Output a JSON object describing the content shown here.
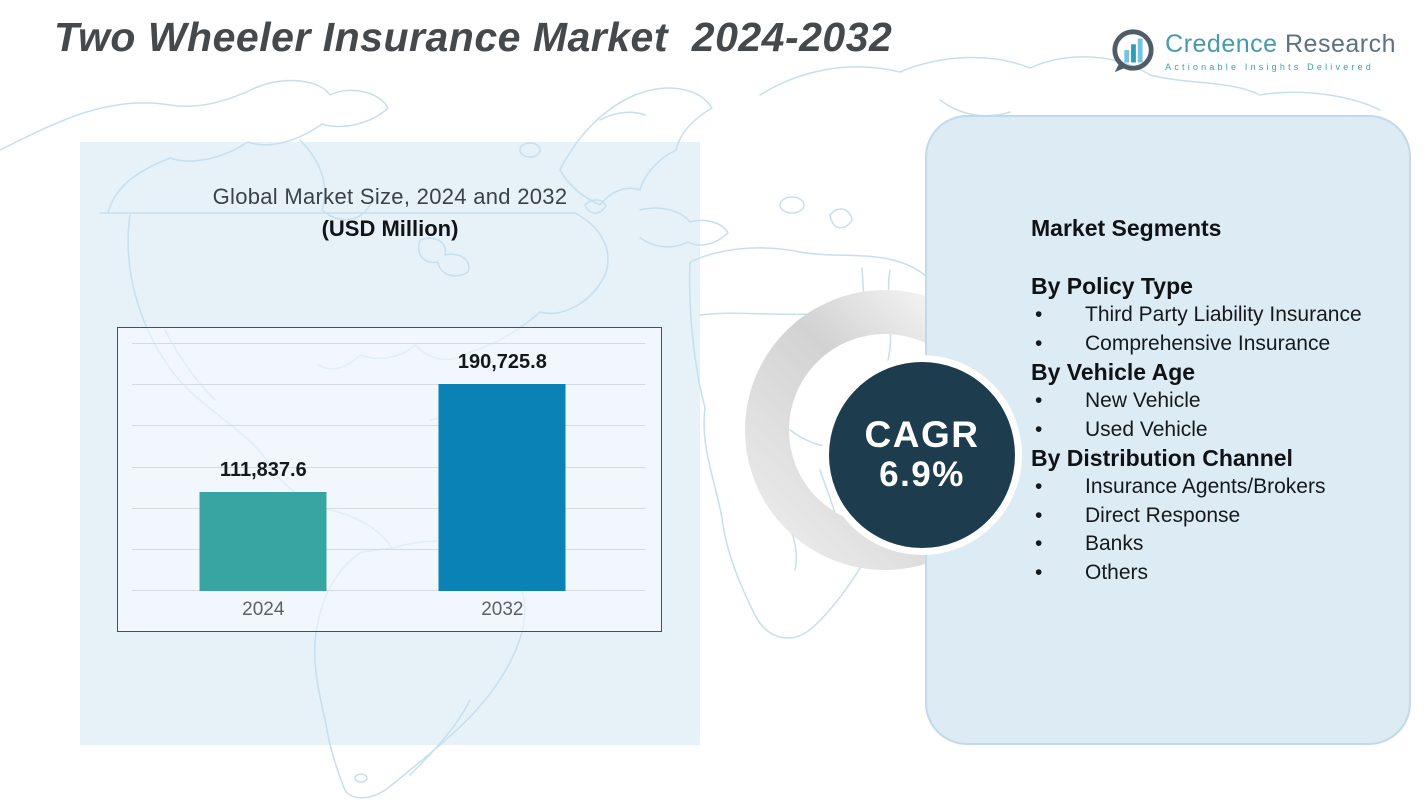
{
  "page": {
    "title": "Two Wheeler Insurance Market  2024-2032"
  },
  "logo": {
    "name_part1": "Credence",
    "name_part2": " Research",
    "tagline": "Actionable Insights Delivered",
    "icon": "bar-chart-speech-bubble-icon"
  },
  "chart_data": {
    "type": "bar",
    "title": "Global Market Size, 2024 and 2032",
    "subtitle": "(USD Million)",
    "categories": [
      "2024",
      "2032"
    ],
    "values": [
      111837.6,
      190725.8
    ],
    "value_labels": [
      "111,837.6",
      "190,725.8"
    ],
    "bar_colors": [
      "#38A5A2",
      "#0B82B5"
    ],
    "ylim": [
      40000,
      220000
    ],
    "gridline_count": 7,
    "grid": "horizontal",
    "legend": "none",
    "xlabel": "",
    "ylabel": ""
  },
  "cagr": {
    "label": "CAGR",
    "value": "6.9%"
  },
  "segments": {
    "title": "Market Segments",
    "groups": [
      {
        "heading": "By Policy Type",
        "items": [
          "Third Party Liability Insurance",
          "Comprehensive Insurance"
        ]
      },
      {
        "heading": "By Vehicle Age",
        "items": [
          "New Vehicle",
          "Used Vehicle"
        ]
      },
      {
        "heading": "By Distribution Channel",
        "items": [
          "Insurance Agents/Brokers",
          "Direct Response",
          "Banks",
          "Others"
        ]
      }
    ]
  },
  "colors": {
    "bar_2024": "#38A5A2",
    "bar_2032": "#0B82B5",
    "cagr_circle": "#1D3C4D",
    "right_panel": "#DCEBF4",
    "map_line": "#C6DFEE",
    "title_text": "#45494C",
    "logo_teal": "#3BA0B2"
  }
}
